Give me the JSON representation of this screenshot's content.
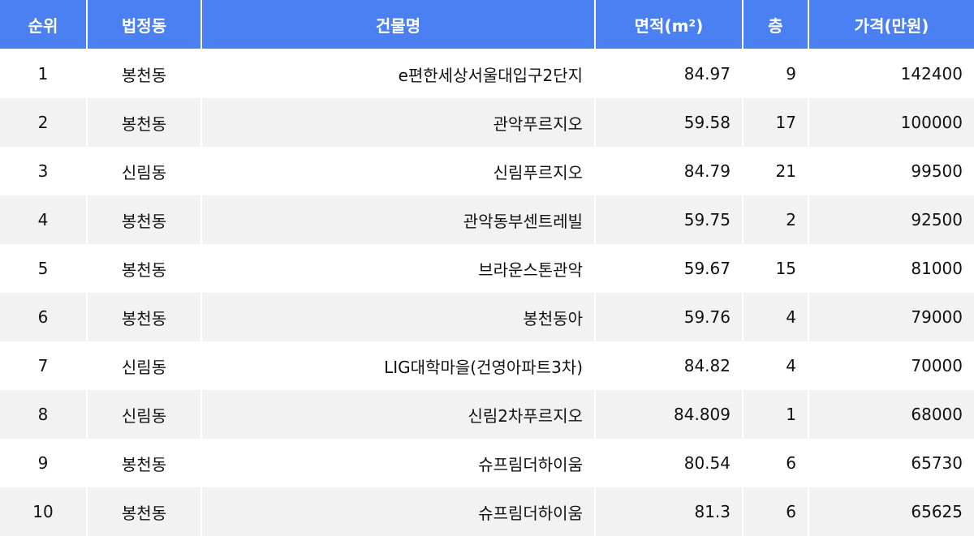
{
  "header_color": "#4a80f2",
  "columns": [
    "순위",
    "법정동",
    "건물명",
    "면적(m²)",
    "층",
    "가격(만원)"
  ],
  "rows": [
    [
      "1",
      "봉천동",
      "e편한세상서울대입구2단지",
      "84.97",
      "9",
      "142400"
    ],
    [
      "2",
      "봉천동",
      "관악푸르지오",
      "59.58",
      "17",
      "100000"
    ],
    [
      "3",
      "신림동",
      "신림푸르지오",
      "84.79",
      "21",
      "99500"
    ],
    [
      "4",
      "봉천동",
      "관악동부센트레빌",
      "59.75",
      "2",
      "92500"
    ],
    [
      "5",
      "봉천동",
      "브라운스톤관악",
      "59.67",
      "15",
      "81000"
    ],
    [
      "6",
      "봉천동",
      "봉천동아",
      "59.76",
      "4",
      "79000"
    ],
    [
      "7",
      "신림동",
      "LIG대학마을(건영아파트3차)",
      "84.82",
      "4",
      "70000"
    ],
    [
      "8",
      "신림동",
      "신림2차푸르지오",
      "84.809",
      "1",
      "68000"
    ],
    [
      "9",
      "봉천동",
      "슈프림더하이움",
      "80.54",
      "6",
      "65730"
    ],
    [
      "10",
      "봉천동",
      "슈프림더하이움",
      "81.3",
      "6",
      "65625"
    ]
  ]
}
